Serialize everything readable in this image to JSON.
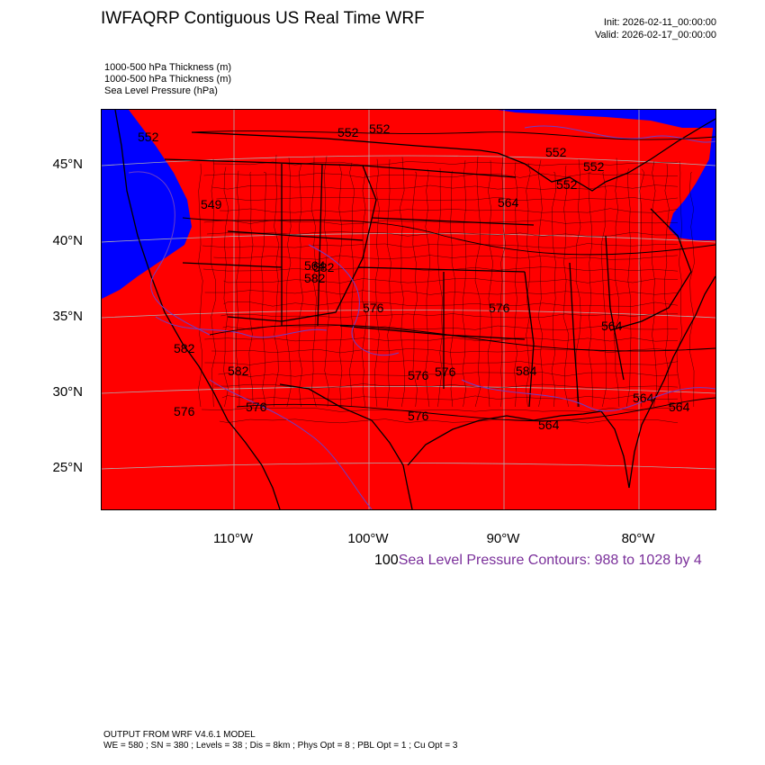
{
  "header": {
    "title": "IWFAQRP Contiguous US Real Time WRF",
    "init": "Init: 2026-02-11_00:00:00",
    "valid": "Valid: 2026-02-17_00:00:00"
  },
  "legend": {
    "line1": "1000-500 hPa Thickness   (m)",
    "line2": "1000-500 hPa Thickness   (m)",
    "line3": "Sea Level Pressure   (hPa)"
  },
  "map": {
    "colors": {
      "warm_fill": "#ff0000",
      "cold_fill": "#0000ff",
      "boundaries": "#000000",
      "thickness_contours": "#000000",
      "pressure_contours": "#6a3fc8",
      "grid": "#b0b0b0"
    },
    "lat_labels": [
      "45°N",
      "40°N",
      "35°N",
      "30°N",
      "25°N"
    ],
    "lon_labels": [
      "110°W",
      "100°W",
      "90°W",
      "80°W"
    ],
    "contour_labels": [
      "552",
      "552",
      "552",
      "552",
      "552",
      "549",
      "564",
      "564",
      "576",
      "582",
      "582",
      "582",
      "584",
      "576",
      "576",
      "576",
      "564",
      "564",
      "564",
      "576",
      "582",
      "576",
      "564",
      "576",
      "552"
    ]
  },
  "contour_caption": {
    "prefix": "100",
    "text": "Sea Level Pressure Contours: 988 to 1028 by 4"
  },
  "footer": {
    "line1": "OUTPUT FROM WRF V4.6.1 MODEL",
    "line2": "WE = 580 ; SN = 380 ; Levels = 38 ; Dis = 8km ; Phys Opt = 8 ; PBL Opt = 1 ; Cu Opt = 3"
  }
}
